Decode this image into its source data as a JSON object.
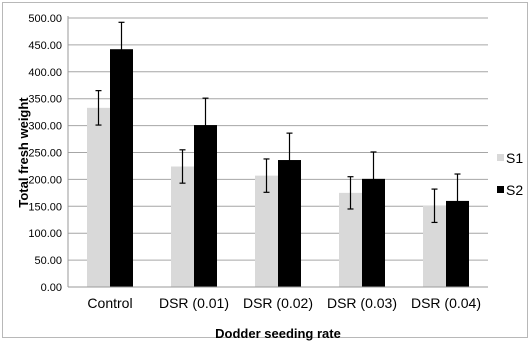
{
  "chart_data": {
    "type": "bar",
    "title": "",
    "xlabel": "Dodder seeding rate",
    "ylabel": "Total fresh weight",
    "ylim": [
      0,
      500
    ],
    "ytick_labels": [
      "0.00",
      "50.00",
      "100.00",
      "150.00",
      "200.00",
      "250.00",
      "300.00",
      "350.00",
      "400.00",
      "450.00",
      "500.00"
    ],
    "categories": [
      "Control",
      "DSR (0.01)",
      "DSR (0.02)",
      "DSR (0.03)",
      "DSR (0.04)"
    ],
    "series": [
      {
        "name": "S1",
        "color": "#d9d9d9",
        "values": [
          333,
          224,
          207,
          175,
          151
        ],
        "errors": [
          32,
          31,
          31,
          30,
          31
        ]
      },
      {
        "name": "S2",
        "color": "#000000",
        "values": [
          442,
          301,
          236,
          201,
          160
        ],
        "errors": [
          50,
          50,
          50,
          50,
          50
        ]
      }
    ],
    "grid": true,
    "error_bars": true,
    "legend_position": "right"
  }
}
